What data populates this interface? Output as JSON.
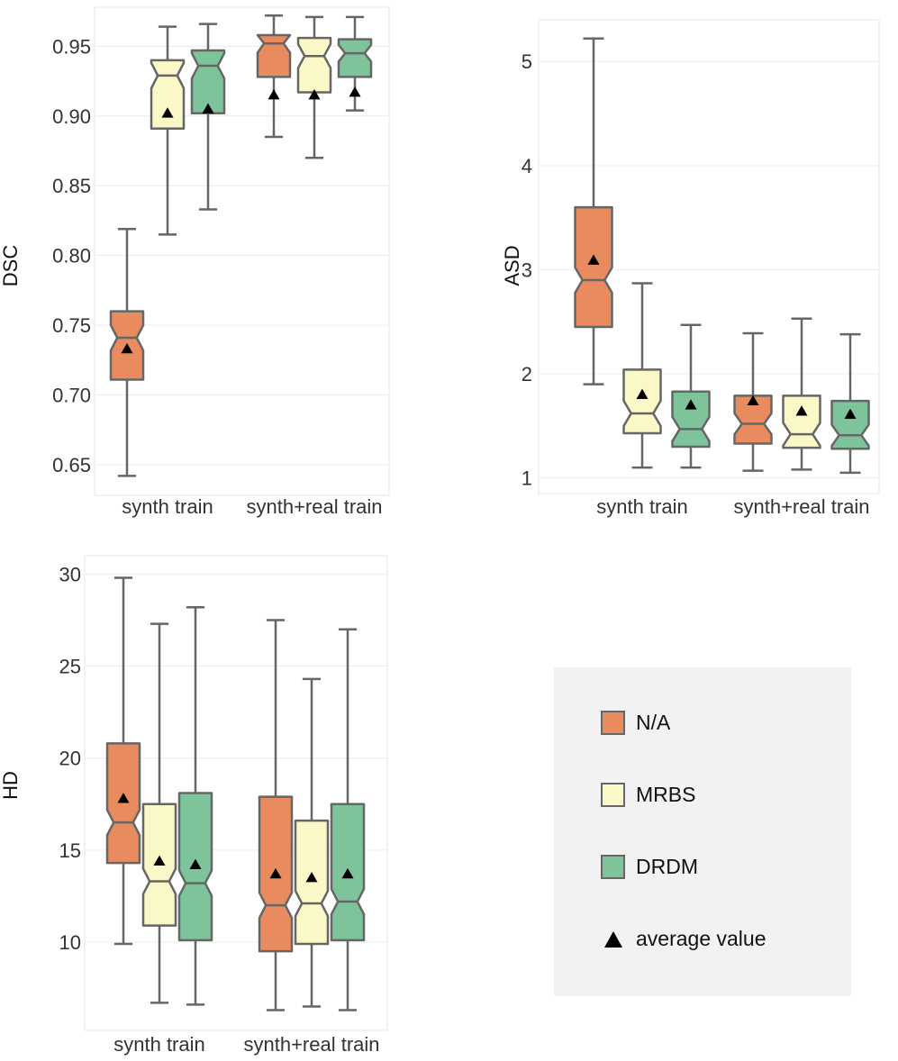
{
  "colors": {
    "na": "#E88B5E",
    "mrbs": "#FAF8C7",
    "drdm": "#7EC49B",
    "box_edge": "#666666",
    "mean_marker": "#000000"
  },
  "legend": {
    "items": [
      {
        "label": "N/A",
        "color": "#E88B5E",
        "kind": "box"
      },
      {
        "label": "MRBS",
        "color": "#FAF8C7",
        "kind": "box"
      },
      {
        "label": "DRDM",
        "color": "#7EC49B",
        "kind": "box"
      },
      {
        "label": "average value",
        "color": "#000000",
        "kind": "triangle"
      }
    ]
  },
  "chart_data": [
    {
      "type": "box",
      "ylabel": "DSC",
      "categories": [
        "synth train",
        "synth+real train"
      ],
      "ylim": [
        0.628,
        0.978
      ],
      "yticks": [
        0.65,
        0.7,
        0.75,
        0.8,
        0.85,
        0.9,
        0.95
      ],
      "ytick_labels": [
        "0.65",
        "0.70",
        "0.75",
        "0.80",
        "0.85",
        "0.90",
        "0.95"
      ],
      "grid": true,
      "series": [
        {
          "name": "N/A",
          "boxes": [
            {
              "min": 0.642,
              "q1": 0.711,
              "median": 0.741,
              "q3": 0.76,
              "max": 0.819,
              "mean": 0.733
            },
            {
              "min": 0.885,
              "q1": 0.928,
              "median": 0.952,
              "q3": 0.958,
              "max": 0.972,
              "mean": 0.915
            }
          ]
        },
        {
          "name": "MRBS",
          "boxes": [
            {
              "min": 0.815,
              "q1": 0.891,
              "median": 0.929,
              "q3": 0.94,
              "max": 0.964,
              "mean": 0.902
            },
            {
              "min": 0.87,
              "q1": 0.917,
              "median": 0.943,
              "q3": 0.956,
              "max": 0.971,
              "mean": 0.915
            }
          ]
        },
        {
          "name": "DRDM",
          "boxes": [
            {
              "min": 0.833,
              "q1": 0.902,
              "median": 0.936,
              "q3": 0.947,
              "max": 0.966,
              "mean": 0.905
            },
            {
              "min": 0.904,
              "q1": 0.928,
              "median": 0.945,
              "q3": 0.955,
              "max": 0.971,
              "mean": 0.917
            }
          ]
        }
      ]
    },
    {
      "type": "box",
      "ylabel": "ASD",
      "categories": [
        "synth train",
        "synth+real train"
      ],
      "ylim": [
        0.85,
        5.4
      ],
      "yticks": [
        1,
        2,
        3,
        4,
        5
      ],
      "ytick_labels": [
        "1",
        "2",
        "3",
        "4",
        "5"
      ],
      "grid": true,
      "series": [
        {
          "name": "N/A",
          "boxes": [
            {
              "min": 1.9,
              "q1": 2.45,
              "median": 2.9,
              "q3": 3.6,
              "max": 5.22,
              "mean": 3.09
            },
            {
              "min": 1.07,
              "q1": 1.33,
              "median": 1.52,
              "q3": 1.79,
              "max": 2.39,
              "mean": 1.74
            }
          ]
        },
        {
          "name": "MRBS",
          "boxes": [
            {
              "min": 1.1,
              "q1": 1.43,
              "median": 1.62,
              "q3": 2.04,
              "max": 2.87,
              "mean": 1.8
            },
            {
              "min": 1.08,
              "q1": 1.29,
              "median": 1.42,
              "q3": 1.79,
              "max": 2.53,
              "mean": 1.64
            }
          ]
        },
        {
          "name": "DRDM",
          "boxes": [
            {
              "min": 1.1,
              "q1": 1.3,
              "median": 1.47,
              "q3": 1.83,
              "max": 2.47,
              "mean": 1.7
            },
            {
              "min": 1.05,
              "q1": 1.28,
              "median": 1.41,
              "q3": 1.74,
              "max": 2.38,
              "mean": 1.61
            }
          ]
        }
      ]
    },
    {
      "type": "box",
      "ylabel": "HD",
      "categories": [
        "synth train",
        "synth+real train"
      ],
      "ylim": [
        5.2,
        31.0
      ],
      "yticks": [
        10,
        15,
        20,
        25,
        30
      ],
      "ytick_labels": [
        "10",
        "15",
        "20",
        "25",
        "30"
      ],
      "grid": true,
      "series": [
        {
          "name": "N/A",
          "boxes": [
            {
              "min": 9.9,
              "q1": 14.3,
              "median": 16.5,
              "q3": 20.8,
              "max": 29.8,
              "mean": 17.8
            },
            {
              "min": 6.3,
              "q1": 9.5,
              "median": 12.0,
              "q3": 17.9,
              "max": 27.5,
              "mean": 13.7
            }
          ]
        },
        {
          "name": "MRBS",
          "boxes": [
            {
              "min": 6.7,
              "q1": 10.9,
              "median": 13.3,
              "q3": 17.5,
              "max": 27.3,
              "mean": 14.4
            },
            {
              "min": 6.5,
              "q1": 9.9,
              "median": 12.1,
              "q3": 16.6,
              "max": 24.3,
              "mean": 13.5
            }
          ]
        },
        {
          "name": "DRDM",
          "boxes": [
            {
              "min": 6.6,
              "q1": 10.1,
              "median": 13.2,
              "q3": 18.1,
              "max": 28.2,
              "mean": 14.2
            },
            {
              "min": 6.3,
              "q1": 10.1,
              "median": 12.2,
              "q3": 17.5,
              "max": 27.0,
              "mean": 13.7
            }
          ]
        }
      ]
    }
  ]
}
